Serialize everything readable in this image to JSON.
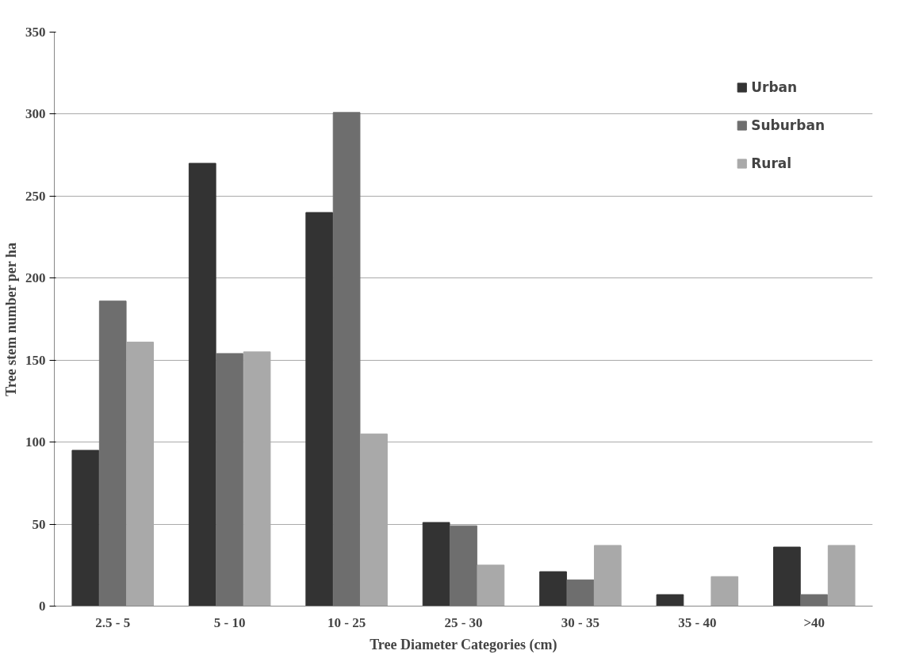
{
  "chart_data": {
    "type": "bar",
    "xlabel": "Tree Diameter Categories (cm)",
    "ylabel": "Tree stem number per ha",
    "categories": [
      "2.5 - 5",
      "5 - 10",
      "10 - 25",
      "25 - 30",
      "30 - 35",
      "35 - 40",
      ">40"
    ],
    "series": [
      {
        "name": "Urban",
        "color": "#333333",
        "values": [
          95,
          270,
          240,
          51,
          21,
          7,
          36
        ]
      },
      {
        "name": "Suburban",
        "color": "#6e6e6e",
        "values": [
          186,
          154,
          301,
          49,
          16,
          0,
          7
        ]
      },
      {
        "name": "Rural",
        "color": "#a9a9a9",
        "values": [
          161,
          155,
          105,
          25,
          37,
          18,
          37
        ]
      }
    ],
    "ylim": [
      0,
      350
    ],
    "yticks": [
      0,
      50,
      100,
      150,
      200,
      250,
      300,
      350
    ],
    "grid": "y",
    "legend": "top right"
  }
}
